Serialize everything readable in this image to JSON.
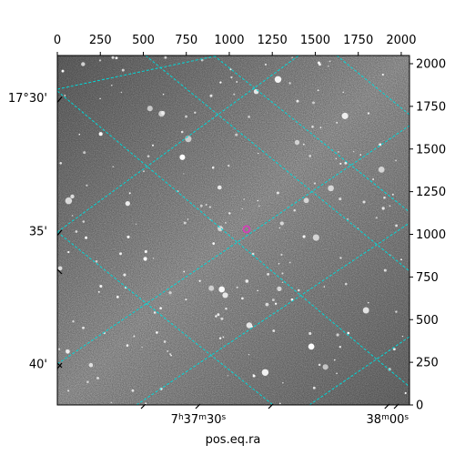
{
  "chart_data": {
    "type": "image",
    "xlabel": "pos.eq.ra",
    "pixel_axis_x": {
      "range": [
        0,
        2048
      ],
      "ticks": [
        0,
        250,
        500,
        750,
        1000,
        1250,
        1500,
        1750,
        2000
      ],
      "tick_labels": [
        "0",
        "250",
        "500",
        "750",
        "1000",
        "1250",
        "1500",
        "1750",
        "2000"
      ]
    },
    "pixel_axis_y": {
      "range": [
        0,
        2048
      ],
      "ticks": [
        0,
        250,
        500,
        750,
        1000,
        1250,
        1500,
        1750,
        2000
      ],
      "tick_labels": [
        "0",
        "250",
        "500",
        "750",
        "1000",
        "1250",
        "1500",
        "1750",
        "2000"
      ]
    },
    "dec_ticks": [
      {
        "label": "17°30'",
        "y": 1800
      },
      {
        "label": "35'",
        "y": 1020
      },
      {
        "label": "40'",
        "y": 240
      }
    ],
    "ra_ticks": [
      {
        "label_main": "7",
        "label_sup1": "h",
        "label_mid": "37",
        "label_sup2": "m",
        "label_end": "30",
        "label_sup3": "s",
        "x": 820
      },
      {
        "label_main": "38",
        "label_sup1": "m",
        "label_mid": "00",
        "label_sup2": "s",
        "label_end": "",
        "label_sup3": "",
        "x": 1920
      }
    ],
    "grid_color": "#00d8d8",
    "marker": {
      "x": 1100,
      "y": 1030,
      "color": "#d63fb8"
    }
  }
}
